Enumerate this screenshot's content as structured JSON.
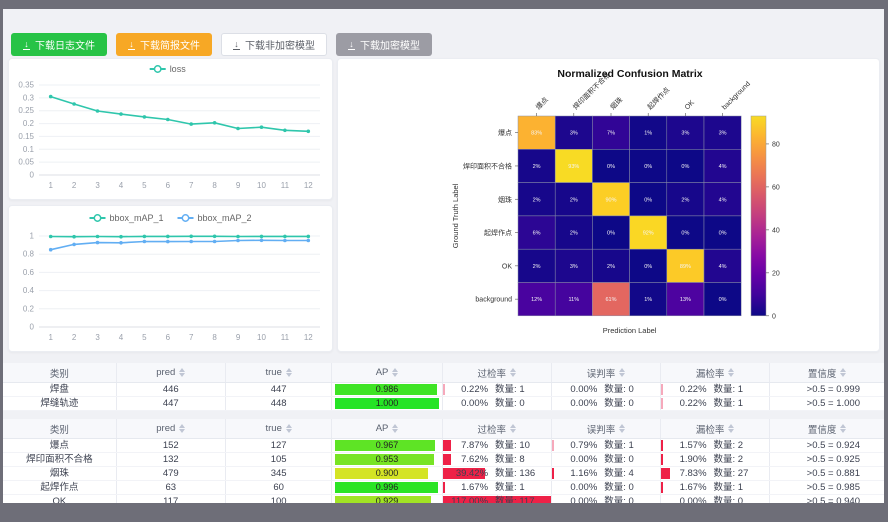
{
  "toolbar": {
    "buttons": [
      {
        "label": "下载日志文件",
        "variant": "green",
        "name": "download-log-button"
      },
      {
        "label": "下载简报文件",
        "variant": "orange",
        "name": "download-report-button"
      },
      {
        "label": "下载非加密模型",
        "variant": "white",
        "name": "download-unencrypted-model-button"
      },
      {
        "label": "下载加密模型",
        "variant": "gray",
        "name": "download-encrypted-model-button"
      }
    ]
  },
  "chart_data": [
    {
      "type": "line",
      "name": "loss",
      "x": [
        "1",
        "2",
        "3",
        "4",
        "5",
        "6",
        "7",
        "8",
        "9",
        "10",
        "11",
        "12"
      ],
      "yticks": [
        "0",
        "0.05",
        "0.1",
        "0.15",
        "0.2",
        "0.25",
        "0.3",
        "0.35"
      ],
      "ymax": 0.35,
      "series": [
        {
          "name": "loss",
          "color": "#2fc6ac",
          "values": [
            0.305,
            0.276,
            0.249,
            0.237,
            0.226,
            0.216,
            0.198,
            0.203,
            0.181,
            0.186,
            0.174,
            0.17
          ]
        }
      ],
      "legend_position": "top"
    },
    {
      "type": "line",
      "name": "bbox_map",
      "x": [
        "1",
        "2",
        "3",
        "4",
        "5",
        "6",
        "7",
        "8",
        "9",
        "10",
        "11",
        "12"
      ],
      "yticks": [
        "0",
        "0.2",
        "0.4",
        "0.6",
        "0.8",
        "1"
      ],
      "ymax": 1,
      "series": [
        {
          "name": "bbox_mAP_1",
          "color": "#2fc6ac",
          "values": [
            0.994,
            0.992,
            0.995,
            0.992,
            0.996,
            0.996,
            0.997,
            0.997,
            0.995,
            0.996,
            0.996,
            0.996
          ]
        },
        {
          "name": "bbox_mAP_2",
          "color": "#62aef3",
          "values": [
            0.85,
            0.908,
            0.928,
            0.925,
            0.94,
            0.938,
            0.94,
            0.94,
            0.951,
            0.953,
            0.95,
            0.95
          ]
        }
      ],
      "legend_position": "top"
    },
    {
      "type": "heatmap",
      "title": "Normalized Confusion Matrix",
      "xlabel": "Prediction Label",
      "ylabel": "Ground Truth Label",
      "labels": [
        "爆点",
        "焊印面积不合格",
        "烟珠",
        "起焊作点",
        "OK",
        "background"
      ],
      "matrix": [
        [
          83,
          3,
          7,
          1,
          3,
          3
        ],
        [
          2,
          93,
          0,
          0,
          0,
          4
        ],
        [
          2,
          2,
          90,
          0,
          2,
          4
        ],
        [
          6,
          2,
          0,
          92,
          0,
          0
        ],
        [
          2,
          3,
          2,
          0,
          89,
          4
        ],
        [
          12,
          11,
          61,
          1,
          13,
          0
        ]
      ],
      "unit": "%",
      "colorbar": {
        "ticks": [
          0,
          20,
          40,
          60,
          80
        ],
        "vmax": 93,
        "colormap": "plasma"
      }
    }
  ],
  "tables": [
    {
      "headers": [
        {
          "label": "类别",
          "sortable": false
        },
        {
          "label": "pred",
          "sortable": true
        },
        {
          "label": "true",
          "sortable": true
        },
        {
          "label": "AP",
          "sortable": true
        },
        {
          "label": "过检率",
          "sortable": true
        },
        {
          "label": "误判率",
          "sortable": true
        },
        {
          "label": "漏检率",
          "sortable": true
        },
        {
          "label": "置信度",
          "sortable": true
        }
      ],
      "rows": [
        {
          "name": "焊盘",
          "pred": "446",
          "true": "447",
          "ap": "0.986",
          "over": [
            "0.22%",
            "数量: 1"
          ],
          "mis": [
            "0.00%",
            "数量: 0"
          ],
          "miss": [
            "0.22%",
            "数量: 1"
          ],
          "conf": ">0.5 = 0.999"
        },
        {
          "name": "焊缝轨迹",
          "pred": "447",
          "true": "448",
          "ap": "1.000",
          "over": [
            "0.00%",
            "数量: 0"
          ],
          "mis": [
            "0.00%",
            "数量: 0"
          ],
          "miss": [
            "0.22%",
            "数量: 1"
          ],
          "conf": ">0.5 = 1.000"
        }
      ]
    },
    {
      "headers": [
        {
          "label": "类别",
          "sortable": false
        },
        {
          "label": "pred",
          "sortable": true
        },
        {
          "label": "true",
          "sortable": true
        },
        {
          "label": "AP",
          "sortable": true
        },
        {
          "label": "过检率",
          "sortable": true
        },
        {
          "label": "误判率",
          "sortable": true
        },
        {
          "label": "漏检率",
          "sortable": true
        },
        {
          "label": "置信度",
          "sortable": true
        }
      ],
      "rows": [
        {
          "name": "爆点",
          "pred": "152",
          "true": "127",
          "ap": "0.967",
          "over": [
            "7.87%",
            "数量: 10"
          ],
          "mis": [
            "0.79%",
            "数量: 1"
          ],
          "miss": [
            "1.57%",
            "数量: 2"
          ],
          "conf": ">0.5 = 0.924"
        },
        {
          "name": "焊印面积不合格",
          "pred": "132",
          "true": "105",
          "ap": "0.953",
          "over": [
            "7.62%",
            "数量: 8"
          ],
          "mis": [
            "0.00%",
            "数量: 0"
          ],
          "miss": [
            "1.90%",
            "数量: 2"
          ],
          "conf": ">0.5 = 0.925"
        },
        {
          "name": "烟珠",
          "pred": "479",
          "true": "345",
          "ap": "0.900",
          "over": [
            "39.42%",
            "数量: 136"
          ],
          "mis": [
            "1.16%",
            "数量: 4"
          ],
          "miss": [
            "7.83%",
            "数量: 27"
          ],
          "conf": ">0.5 = 0.881"
        },
        {
          "name": "起焊作点",
          "pred": "63",
          "true": "60",
          "ap": "0.996",
          "over": [
            "1.67%",
            "数量: 1"
          ],
          "mis": [
            "0.00%",
            "数量: 0"
          ],
          "miss": [
            "1.67%",
            "数量: 1"
          ],
          "conf": ">0.5 = 0.985"
        },
        {
          "name": "OK",
          "pred": "117",
          "true": "100",
          "ap": "0.929",
          "over": [
            "117.00%",
            "数量: 117"
          ],
          "mis": [
            "0.00%",
            "数量: 0"
          ],
          "miss": [
            "0.00%",
            "数量: 0"
          ],
          "conf": ">0.5 = 0.940"
        }
      ]
    }
  ],
  "colors": {
    "accent_teal": "#2fc6ac",
    "accent_blue": "#62aef3",
    "bar_red": "#ee2147",
    "btn_green": "#27c346",
    "btn_orange": "#f7a825"
  }
}
